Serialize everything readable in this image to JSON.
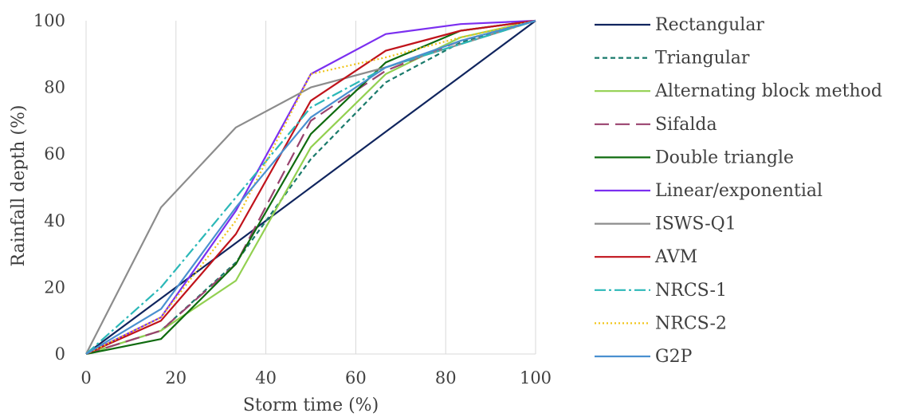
{
  "chart_data": {
    "type": "line",
    "title": "",
    "xlabel": "Storm time (%)",
    "ylabel": "Rainfall depth (%)",
    "xlim": [
      0,
      100
    ],
    "ylim": [
      0,
      100
    ],
    "xticks": [
      "0",
      "20",
      "40",
      "60",
      "80",
      "100"
    ],
    "yticks": [
      "0",
      "20",
      "40",
      "60",
      "80",
      "100"
    ],
    "grid": "vertical gridlines",
    "legend": "right",
    "x": [
      0,
      16.67,
      33.33,
      50,
      66.67,
      83.33,
      100
    ],
    "series": [
      {
        "name": "Rectangular",
        "color": "#10255e",
        "dash": "",
        "values": [
          0,
          16.7,
          33.3,
          50,
          66.7,
          83.3,
          100
        ]
      },
      {
        "name": "Triangular",
        "color": "#197a6b",
        "dash": "6,4",
        "values": [
          0,
          7,
          27.5,
          58.5,
          81.5,
          93.5,
          100
        ]
      },
      {
        "name": "Alternating block method",
        "color": "#92d050",
        "dash": "",
        "values": [
          0,
          7,
          22,
          62,
          84,
          95,
          100
        ]
      },
      {
        "name": "Sifalda",
        "color": "#99426e",
        "dash": "18,8",
        "values": [
          0,
          7,
          27,
          70,
          85,
          94,
          100
        ]
      },
      {
        "name": "Double triangle",
        "color": "#0f6b0f",
        "dash": "",
        "values": [
          0,
          4.5,
          27,
          66,
          87.5,
          97,
          100
        ]
      },
      {
        "name": "Linear/exponential",
        "color": "#7b2ff0",
        "dash": "",
        "values": [
          0,
          11,
          43,
          84,
          96,
          99,
          100
        ]
      },
      {
        "name": "ISWS-Q1",
        "color": "#8c8c8c",
        "dash": "",
        "values": [
          0,
          44,
          68,
          80,
          86,
          93,
          100
        ]
      },
      {
        "name": "AVM",
        "color": "#c0131b",
        "dash": "",
        "values": [
          0,
          10,
          36,
          76,
          91,
          97,
          100
        ]
      },
      {
        "name": "NRCS-1",
        "color": "#2bb8b8",
        "dash": "14,4,3,4",
        "values": [
          0,
          20,
          47,
          74,
          86,
          93,
          100
        ]
      },
      {
        "name": "NRCS-2",
        "color": "#f0c419",
        "dash": "2,3",
        "values": [
          0,
          11,
          40,
          84,
          89,
          95,
          100
        ]
      },
      {
        "name": "G2P",
        "color": "#4a90d0",
        "dash": "",
        "values": [
          0,
          13.5,
          44,
          71,
          86,
          94,
          100
        ]
      }
    ]
  }
}
